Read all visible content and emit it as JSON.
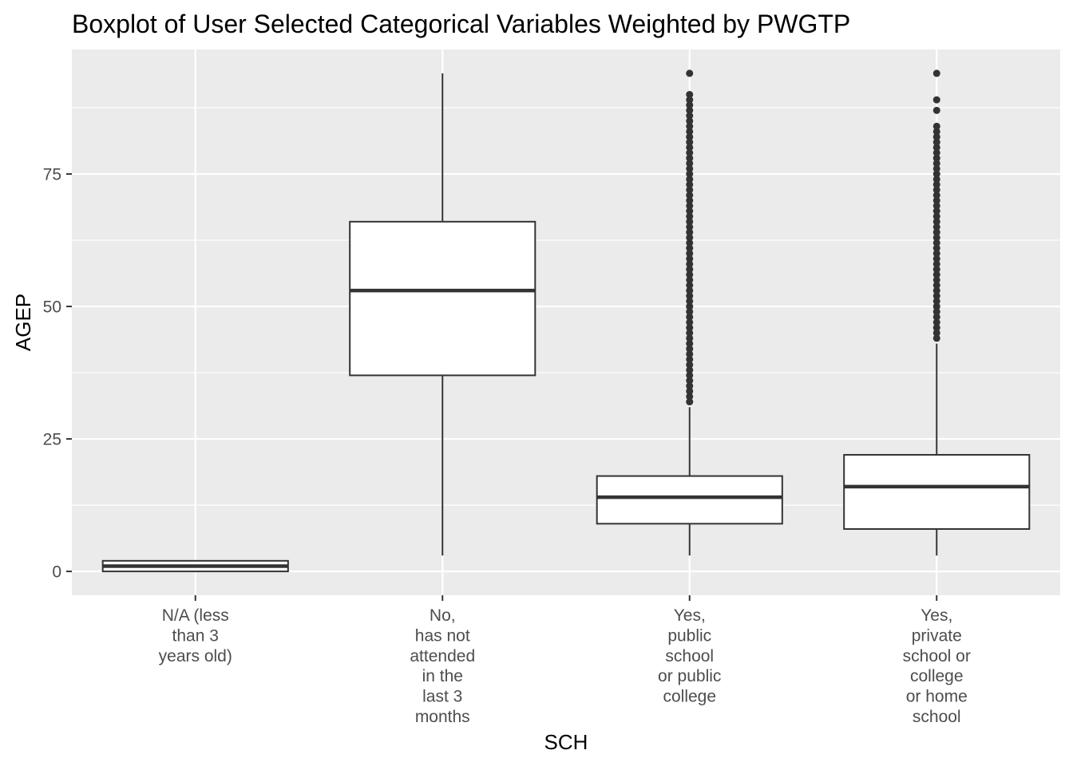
{
  "chart_data": {
    "type": "boxplot",
    "title": "Boxplot of User Selected Categorical Variables Weighted by PWGTP",
    "xlabel": "SCH",
    "ylabel": "AGEP",
    "ylim": [
      -4.5,
      98.5
    ],
    "yticks": [
      0,
      25,
      50,
      75
    ],
    "grid": true,
    "legend": "none",
    "colors": {
      "panel": "#ebebeb",
      "grid_major": "#ffffff",
      "box_fill": "#ffffff",
      "box_line": "#333333",
      "outlier": "#333333",
      "text": "#4d4d4d"
    },
    "categories": [
      {
        "lines": [
          "N/A (less",
          "than 3",
          "years old)"
        ],
        "min": 0,
        "q1": 0,
        "median": 1,
        "q3": 2,
        "max": 2,
        "outliers": []
      },
      {
        "lines": [
          "No,",
          "has not",
          "attended",
          "in the",
          "last 3",
          "months"
        ],
        "min": 3,
        "q1": 37,
        "median": 53,
        "q3": 66,
        "max": 94,
        "outliers": []
      },
      {
        "lines": [
          "Yes,",
          "public",
          "school",
          "or public",
          "college"
        ],
        "min": 3,
        "q1": 9,
        "median": 14,
        "q3": 18,
        "max": 31,
        "outliers": [
          32,
          33,
          34,
          35,
          36,
          37,
          38,
          39,
          40,
          41,
          42,
          43,
          44,
          45,
          46,
          47,
          48,
          49,
          50,
          51,
          52,
          53,
          54,
          55,
          56,
          57,
          58,
          59,
          60,
          61,
          62,
          63,
          64,
          65,
          66,
          67,
          68,
          69,
          70,
          71,
          72,
          73,
          74,
          75,
          76,
          77,
          78,
          79,
          80,
          81,
          82,
          83,
          84,
          85,
          86,
          87,
          88,
          89,
          90,
          94
        ]
      },
      {
        "lines": [
          "Yes,",
          "private",
          "school or",
          "college",
          "or home",
          "school"
        ],
        "min": 3,
        "q1": 8,
        "median": 16,
        "q3": 22,
        "max": 43,
        "outliers": [
          44,
          45,
          46,
          47,
          48,
          49,
          50,
          51,
          52,
          53,
          54,
          55,
          56,
          57,
          58,
          59,
          60,
          61,
          62,
          63,
          64,
          65,
          66,
          67,
          68,
          69,
          70,
          71,
          72,
          73,
          74,
          75,
          76,
          77,
          78,
          79,
          80,
          81,
          82,
          83,
          84,
          87,
          89,
          94
        ]
      }
    ]
  }
}
